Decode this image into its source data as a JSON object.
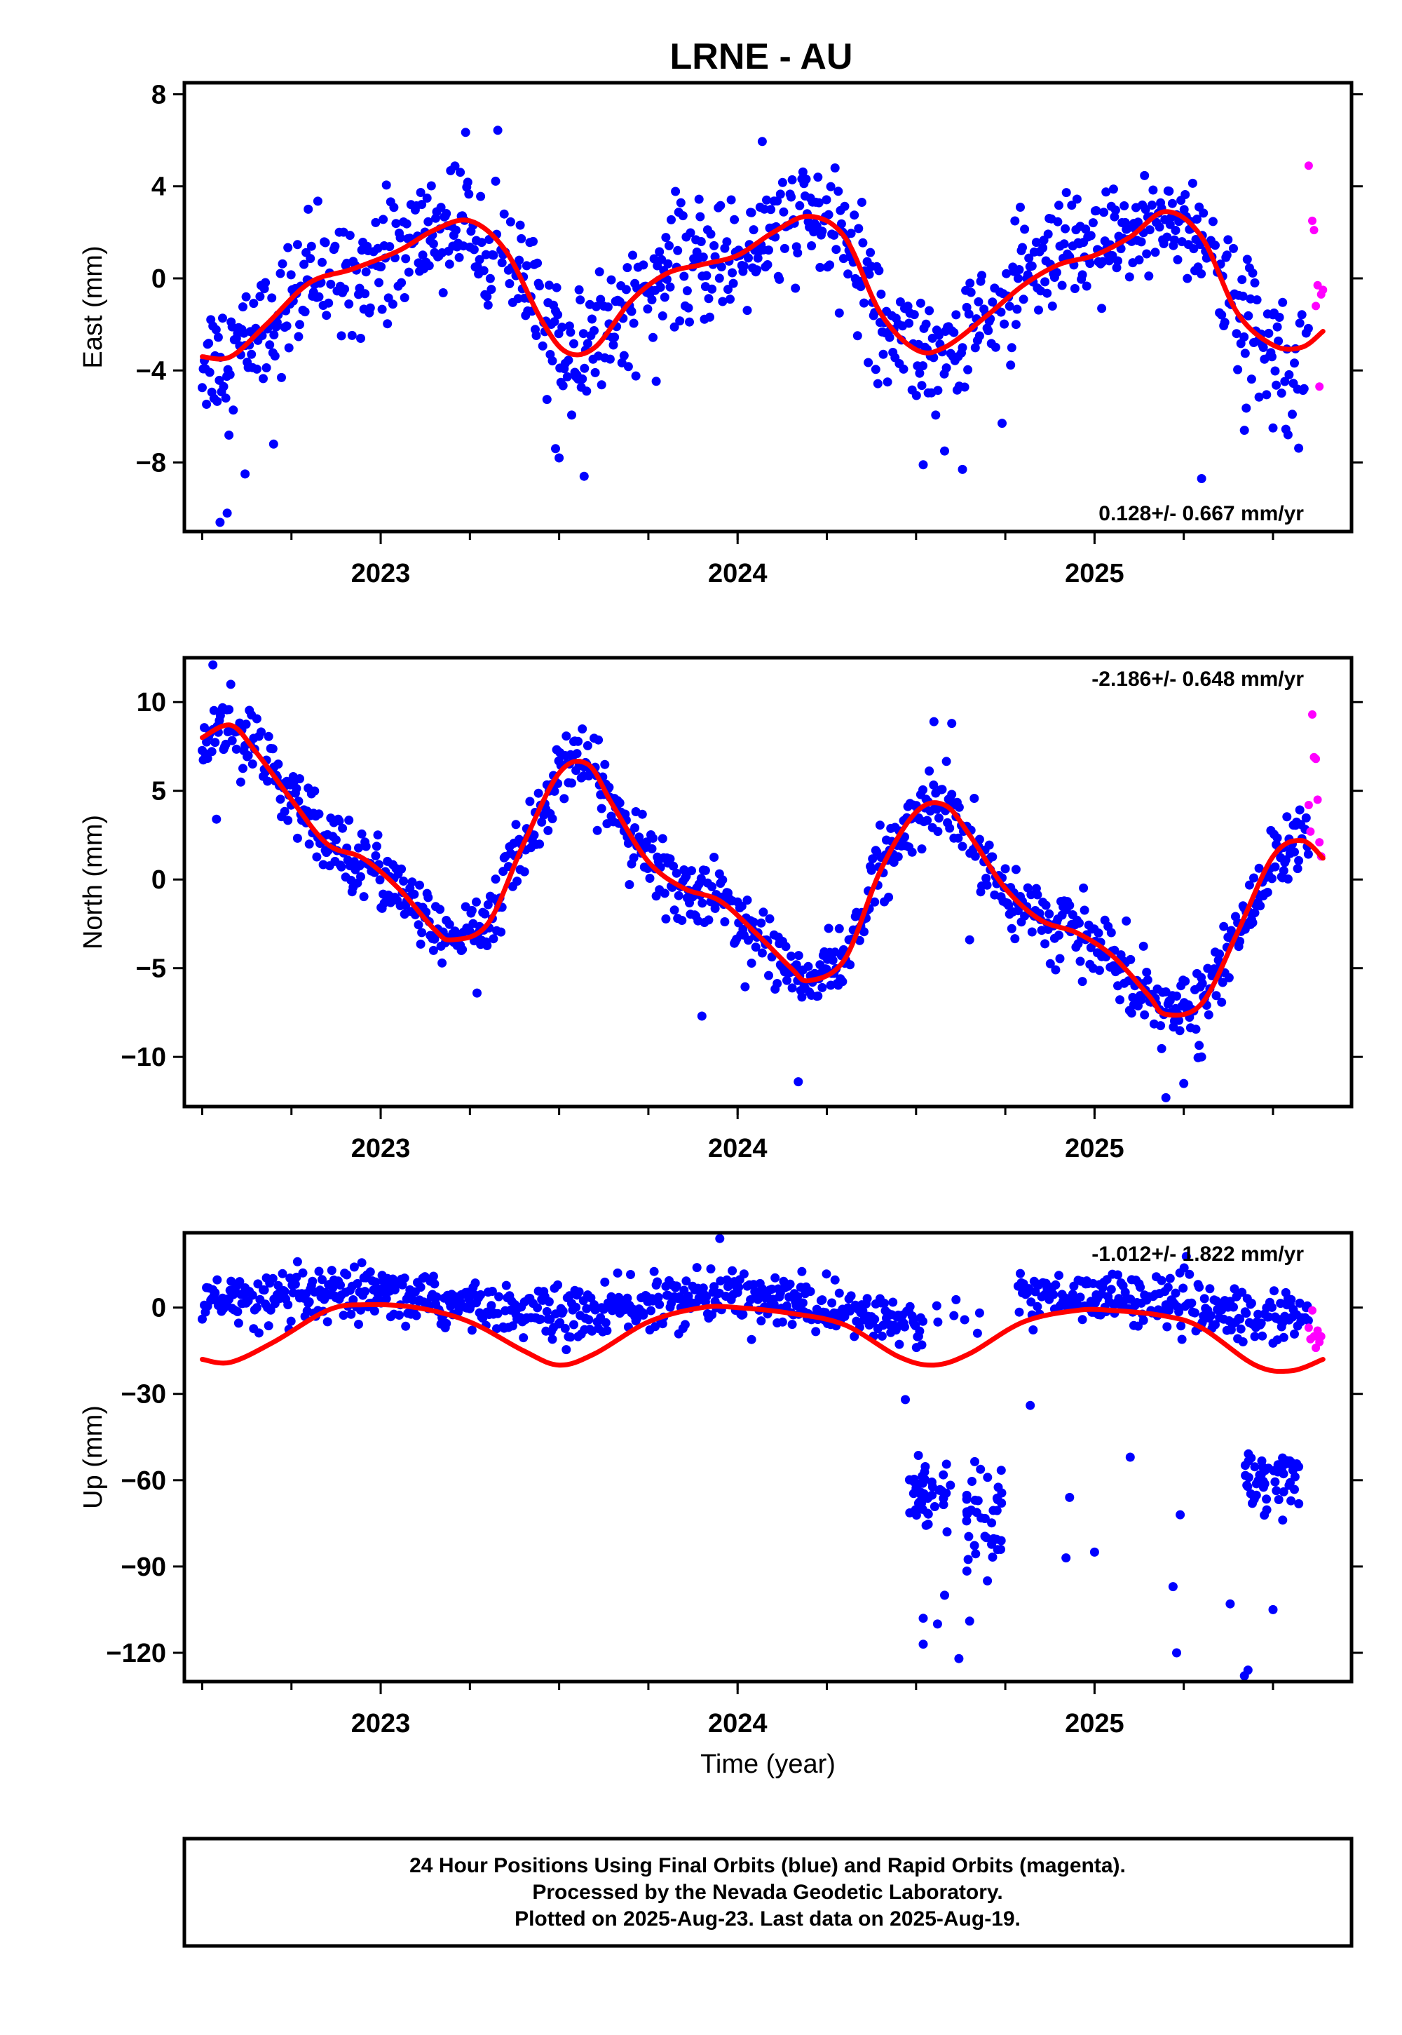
{
  "title": "LRNE - AU",
  "footer": {
    "line1": "24 Hour Positions Using Final Orbits (blue) and Rapid Orbits (magenta).",
    "line2": "Processed by the Nevada Geodetic Laboratory.",
    "line3": "Plotted on 2025-Aug-23. Last data on 2025-Aug-19."
  },
  "colors": {
    "final": "#0000ff",
    "rapid": "#ff00ff",
    "model": "#ff0000",
    "frame": "#000000"
  },
  "chart_data": [
    {
      "type": "scatter",
      "name": "east",
      "ylabel": "East (mm)",
      "xlabel": "",
      "xlim": [
        2022.45,
        2025.72
      ],
      "ylim": [
        -11,
        8.5
      ],
      "yticks": [
        8,
        4,
        0,
        -4,
        -8
      ],
      "ytick_labels": [
        "8",
        "4",
        "0",
        "−4",
        "−8"
      ],
      "xticks": [
        2023,
        2024,
        2025
      ],
      "xtick_labels": [
        "2023",
        "2024",
        "2025"
      ],
      "rate_text": "0.128+/- 0.667 mm/yr",
      "rate_position": "bottom-right",
      "model": {
        "x": [
          2022.5,
          2022.58,
          2022.68,
          2022.8,
          2022.92,
          2023.05,
          2023.15,
          2023.25,
          2023.35,
          2023.45,
          2023.52,
          2023.6,
          2023.7,
          2023.8,
          2023.9,
          2024.0,
          2024.1,
          2024.2,
          2024.3,
          2024.4,
          2024.5,
          2024.58,
          2024.7,
          2024.8,
          2024.9,
          2025.0,
          2025.1,
          2025.2,
          2025.3,
          2025.4,
          2025.5,
          2025.58,
          2025.64
        ],
        "y": [
          -3.4,
          -3.4,
          -2.0,
          -0.2,
          0.4,
          1.2,
          2.1,
          2.5,
          1.2,
          -1.8,
          -3.2,
          -3.0,
          -1.0,
          0.2,
          0.6,
          1.0,
          2.0,
          2.7,
          1.8,
          -1.5,
          -3.1,
          -3.0,
          -1.6,
          -0.3,
          0.6,
          1.0,
          1.8,
          2.9,
          1.8,
          -1.5,
          -2.9,
          -3.0,
          -2.3
        ]
      },
      "rapid": {
        "x": [
          2025.6,
          2025.61,
          2025.615,
          2025.62,
          2025.625,
          2025.63,
          2025.635,
          2025.64
        ],
        "y": [
          4.9,
          2.5,
          2.1,
          -1.2,
          -0.3,
          -4.7,
          -0.7,
          -0.5
        ]
      },
      "final": {
        "base": "model",
        "scatter_sd": 1.3,
        "daily_step": 0.003,
        "x_range": [
          2022.5,
          2025.6
        ],
        "outliers": {
          "x": [
            2022.55,
            2022.57,
            2022.62,
            2022.7,
            2023.49,
            2023.5,
            2023.57,
            2024.42,
            2024.52,
            2024.58,
            2024.63,
            2025.3,
            2025.42,
            2025.5
          ],
          "y": [
            -10.6,
            -10.2,
            -8.5,
            -7.2,
            -7.4,
            -7.8,
            -8.6,
            -4.5,
            -8.1,
            -7.5,
            -8.3,
            -8.7,
            -6.6,
            -6.5
          ]
        }
      }
    },
    {
      "type": "scatter",
      "name": "north",
      "ylabel": "North (mm)",
      "xlabel": "",
      "xlim": [
        2022.45,
        2025.72
      ],
      "ylim": [
        -12.8,
        12.5
      ],
      "yticks": [
        10,
        5,
        0,
        -5,
        -10
      ],
      "ytick_labels": [
        "10",
        "5",
        "0",
        "−5",
        "−10"
      ],
      "xticks": [
        2023,
        2024,
        2025
      ],
      "xtick_labels": [
        "2023",
        "2024",
        "2025"
      ],
      "rate_text": "-2.186+/- 0.648 mm/yr",
      "rate_position": "top-right",
      "model": {
        "x": [
          2022.5,
          2022.58,
          2022.65,
          2022.75,
          2022.85,
          2022.95,
          2023.05,
          2023.15,
          2023.2,
          2023.3,
          2023.4,
          2023.5,
          2023.58,
          2023.65,
          2023.75,
          2023.85,
          2023.95,
          2024.05,
          2024.15,
          2024.2,
          2024.3,
          2024.4,
          2024.5,
          2024.58,
          2024.65,
          2024.75,
          2024.85,
          2024.95,
          2025.05,
          2025.15,
          2025.2,
          2025.3,
          2025.4,
          2025.5,
          2025.58,
          2025.64
        ],
        "y": [
          8.0,
          8.7,
          7.2,
          4.5,
          2.0,
          1.2,
          -0.5,
          -2.8,
          -3.4,
          -2.5,
          2.0,
          6.0,
          6.5,
          4.2,
          1.0,
          -0.5,
          -1.2,
          -3.0,
          -5.0,
          -5.7,
          -4.5,
          0.5,
          3.8,
          4.2,
          2.5,
          -0.5,
          -2.3,
          -3.0,
          -4.3,
          -6.5,
          -7.6,
          -7.0,
          -3.0,
          1.3,
          2.2,
          1.2
        ]
      },
      "rapid": {
        "x": [
          2025.6,
          2025.605,
          2025.61,
          2025.615,
          2025.62,
          2025.625,
          2025.63,
          2025.635
        ],
        "y": [
          4.2,
          2.7,
          9.3,
          6.9,
          6.8,
          4.5,
          2.1,
          1.3
        ]
      },
      "final": {
        "base": "model",
        "scatter_sd": 0.95,
        "daily_step": 0.003,
        "x_range": [
          2022.5,
          2025.6
        ],
        "outliers": {
          "x": [
            2022.53,
            2022.54,
            2022.58,
            2023.27,
            2023.9,
            2024.17,
            2024.55,
            2024.6,
            2024.65,
            2025.2,
            2025.25,
            2025.3,
            2025.53
          ],
          "y": [
            12.1,
            3.4,
            11.0,
            -6.4,
            -7.7,
            -11.4,
            8.9,
            8.8,
            -3.4,
            -12.3,
            -11.5,
            -10.0,
            0.5
          ]
        }
      }
    },
    {
      "type": "scatter",
      "name": "up",
      "ylabel": "Up (mm)",
      "xlabel": "Time (year)",
      "xlim": [
        2022.45,
        2025.72
      ],
      "ylim": [
        -130,
        26
      ],
      "yticks": [
        0,
        -30,
        -60,
        -90,
        -120
      ],
      "ytick_labels": [
        "0",
        "−30",
        "−60",
        "−90",
        "−120"
      ],
      "xticks": [
        2023,
        2024,
        2025
      ],
      "xtick_labels": [
        "2023",
        "2024",
        "2025"
      ],
      "rate_text": "-1.012+/- 1.822 mm/yr",
      "rate_position": "top-right",
      "model": {
        "x": [
          2022.5,
          2022.58,
          2022.7,
          2022.85,
          2022.95,
          2023.1,
          2023.25,
          2023.4,
          2023.5,
          2023.6,
          2023.75,
          2023.9,
          2024.0,
          2024.15,
          2024.3,
          2024.45,
          2024.55,
          2024.65,
          2024.8,
          2024.95,
          2025.05,
          2025.2,
          2025.3,
          2025.45,
          2025.55,
          2025.64
        ],
        "y": [
          -18,
          -19,
          -12,
          -1,
          1,
          0,
          -5,
          -15,
          -20,
          -16,
          -5,
          0,
          0,
          -2,
          -6,
          -17,
          -20,
          -16,
          -5,
          -1,
          -1,
          -3,
          -7,
          -20,
          -22,
          -18
        ]
      },
      "rapid": {
        "x": [
          2025.6,
          2025.605,
          2025.61,
          2025.615,
          2025.62,
          2025.625,
          2025.63,
          2025.635
        ],
        "y": [
          -7,
          -11,
          -1,
          -10,
          -14,
          -8,
          -12,
          -10
        ]
      },
      "final": {
        "base": "up-cloud",
        "scatter_sd": 4.5,
        "daily_step": 0.003,
        "x_range": [
          2022.5,
          2025.6
        ],
        "cloud_center": {
          "x": [
            2022.5,
            2023.0,
            2023.5,
            2024.0,
            2024.4,
            2024.52,
            2024.8,
            2025.2,
            2025.4
          ],
          "y": [
            2,
            4,
            -3,
            5,
            -4,
            -8,
            5,
            2,
            -3
          ]
        },
        "gap": [
          2024.52,
          2024.78
        ],
        "low_clusters": [
          {
            "x": [
              2024.48,
              2024.6
            ],
            "y_mean": -65,
            "sd": 6,
            "n": 45
          },
          {
            "x": [
              2024.64,
              2024.74
            ],
            "y_mean": -72,
            "sd": 9,
            "n": 40
          },
          {
            "x": [
              2025.42,
              2025.58
            ],
            "y_mean": -60,
            "sd": 6,
            "n": 55
          }
        ],
        "outliers": {
          "x": [
            2023.95,
            2024.47,
            2024.52,
            2024.52,
            2024.56,
            2024.58,
            2024.62,
            2024.65,
            2024.7,
            2024.82,
            2024.92,
            2024.93,
            2025.0,
            2025.1,
            2025.22,
            2025.23,
            2025.24,
            2025.38,
            2025.42,
            2025.43,
            2025.5
          ],
          "y": [
            24,
            -32,
            -117,
            -108,
            -110,
            -100,
            -122,
            -109,
            -95,
            -34,
            -87,
            -66,
            -85,
            -52,
            -97,
            -120,
            -72,
            -103,
            -128,
            -126,
            -105
          ]
        }
      }
    }
  ]
}
